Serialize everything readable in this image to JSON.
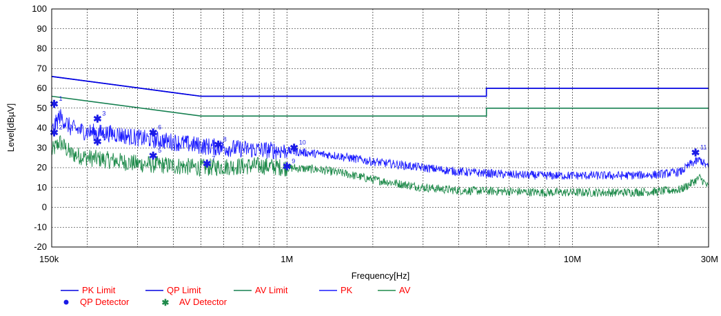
{
  "chart_data": {
    "type": "line",
    "xlabel": "Frequency[Hz]",
    "ylabel": "Level[dBµV]",
    "x_scale": "log",
    "xlim": [
      150000,
      30000000
    ],
    "ylim": [
      -20,
      100
    ],
    "grid": true,
    "x_ticks": [
      {
        "value": 150000,
        "label": "150k"
      },
      {
        "value": 1000000,
        "label": "1M"
      },
      {
        "value": 10000000,
        "label": "10M"
      },
      {
        "value": 30000000,
        "label": "30M"
      }
    ],
    "y_ticks": [
      100,
      90,
      80,
      70,
      60,
      50,
      40,
      30,
      20,
      10,
      0,
      -10,
      -20
    ],
    "colors": {
      "pk": "#1a1aff",
      "av": "#1e8a4a",
      "marker": "#1a1ae6",
      "legend_text": "#ff0000"
    },
    "series": [
      {
        "name": "PK Limit",
        "color": "#0000e0",
        "x": [
          150000,
          500000,
          500000,
          5000000,
          5000000,
          30000000
        ],
        "y": [
          66,
          56,
          56,
          56,
          60,
          60
        ]
      },
      {
        "name": "QP Limit",
        "color": "#0000e0",
        "x": [
          150000,
          500000,
          500000,
          5000000,
          5000000,
          30000000
        ],
        "y": [
          66,
          56,
          56,
          56,
          60,
          60
        ]
      },
      {
        "name": "AV Limit",
        "color": "#168050",
        "x": [
          150000,
          500000,
          500000,
          5000000,
          5000000,
          30000000
        ],
        "y": [
          56,
          46,
          46,
          46,
          50,
          50
        ]
      },
      {
        "name": "PK",
        "color": "#1a1aff",
        "x": [
          150000,
          160000,
          175000,
          200000,
          250000,
          300000,
          400000,
          500000,
          600000,
          800000,
          1000000,
          1500000,
          2000000,
          3000000,
          4000000,
          6000000,
          8000000,
          10000000,
          15000000,
          20000000,
          24000000,
          26000000,
          28000000,
          30000000
        ],
        "y": [
          38,
          46,
          40,
          38,
          37,
          35,
          33,
          31,
          30,
          29,
          28.5,
          26,
          23,
          20,
          18,
          16.5,
          16,
          16,
          16,
          16.5,
          18,
          22,
          24,
          20
        ]
      },
      {
        "name": "AV",
        "color": "#1e8a4a",
        "x": [
          150000,
          160000,
          175000,
          200000,
          250000,
          300000,
          400000,
          500000,
          600000,
          800000,
          1000000,
          1300000,
          1600000,
          2000000,
          3000000,
          4000000,
          6000000,
          8000000,
          10000000,
          15000000,
          20000000,
          24000000,
          26000000,
          28000000,
          30000000
        ],
        "y": [
          28,
          33,
          27,
          25,
          23.5,
          22,
          21,
          20,
          20.5,
          21,
          20,
          19,
          17,
          14,
          10,
          8.5,
          8,
          7.5,
          7.5,
          7.5,
          8,
          9,
          12,
          15,
          10
        ]
      }
    ],
    "markers": [
      {
        "id": "1",
        "x": 153000,
        "y": 52,
        "detector": "QP"
      },
      {
        "id": "2",
        "x": 153000,
        "y": 37.5,
        "detector": "AV"
      },
      {
        "id": "3",
        "x": 217000,
        "y": 44.5,
        "detector": "QP"
      },
      {
        "id": "4",
        "x": 217000,
        "y": 33,
        "detector": "AV"
      },
      {
        "id": "5",
        "x": 340000,
        "y": 26,
        "detector": "AV"
      },
      {
        "id": "6",
        "x": 340000,
        "y": 37.5,
        "detector": "QP"
      },
      {
        "id": "7",
        "x": 525000,
        "y": 22,
        "detector": "AV"
      },
      {
        "id": "8",
        "x": 575000,
        "y": 31.5,
        "detector": "QP"
      },
      {
        "id": "9",
        "x": 1000000,
        "y": 20.5,
        "detector": "AV"
      },
      {
        "id": "10",
        "x": 1060000,
        "y": 30,
        "detector": "QP"
      },
      {
        "id": "11",
        "x": 27000000,
        "y": 27.5,
        "detector": "QP"
      }
    ],
    "legend": {
      "position": "bottom-left",
      "lines": [
        {
          "label": "PK Limit",
          "color": "#0000e0"
        },
        {
          "label": "QP Limit",
          "color": "#0000e0"
        },
        {
          "label": "AV Limit",
          "color": "#168050"
        },
        {
          "label": "PK",
          "color": "#1a1aff"
        },
        {
          "label": "AV",
          "color": "#1e8a4a"
        }
      ],
      "symbols": [
        {
          "label": "QP Detector",
          "symbol": "dot",
          "color": "#1a1ae6"
        },
        {
          "label": "AV Detector",
          "symbol": "star",
          "color": "#1e8a4a"
        }
      ]
    }
  }
}
